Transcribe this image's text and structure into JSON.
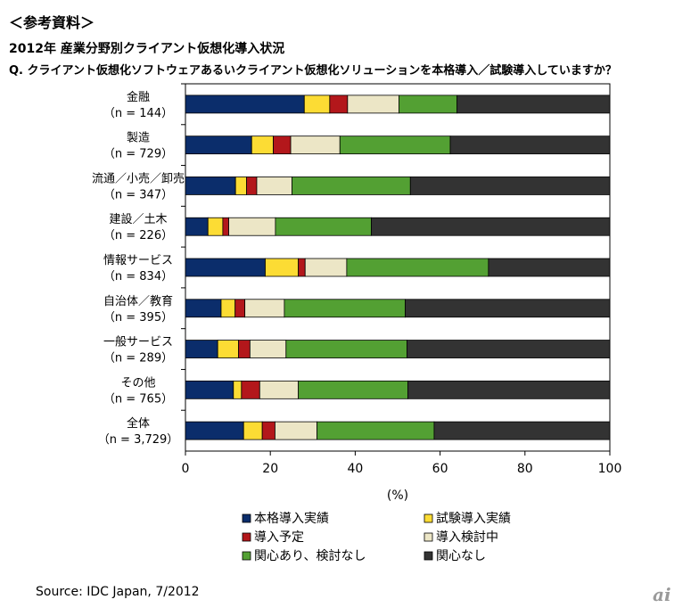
{
  "header": {
    "ref": "＜参考資料＞",
    "title": "2012年 産業分野別クライアント仮想化導入状況",
    "question": "Q. クライアント仮想化ソフトウェアあるいクライアント仮想化ソリューションを本格導入／試験導入していますか？"
  },
  "chart_data": {
    "type": "bar",
    "orientation": "horizontal",
    "stacked": true,
    "categories": [
      {
        "name": "金融",
        "n": "（n = 144）"
      },
      {
        "name": "製造",
        "n": "（n = 729）"
      },
      {
        "name": "流通／小売／卸売",
        "n": "（n = 347）"
      },
      {
        "name": "建設／土木",
        "n": "（n = 226）"
      },
      {
        "name": "情報サービス",
        "n": "（n = 834）"
      },
      {
        "name": "自治体／教育",
        "n": "（n = 395）"
      },
      {
        "name": "一般サービス",
        "n": "（n = 289）"
      },
      {
        "name": "その他",
        "n": "（n = 765）"
      },
      {
        "name": "全体",
        "n": "（n = 3,729）"
      }
    ],
    "series": [
      {
        "name": "本格導入実績",
        "color": "#0b2d6b",
        "values": [
          28,
          15.6,
          11.8,
          5.3,
          18.8,
          8.4,
          7.6,
          11.3,
          13.7
        ]
      },
      {
        "name": "試験導入実績",
        "color": "#fcdc34",
        "values": [
          6,
          5.1,
          2.6,
          3.5,
          7.8,
          3.3,
          4.9,
          1.9,
          4.4
        ]
      },
      {
        "name": "導入予定",
        "color": "#b3171b",
        "values": [
          4.2,
          4.1,
          2.4,
          1.4,
          1.6,
          2.3,
          2.7,
          4.3,
          3
        ]
      },
      {
        "name": "導入検討中",
        "color": "#ece6c6",
        "values": [
          12.1,
          11.6,
          8.3,
          11,
          9.8,
          9.3,
          8.5,
          9.1,
          9.9
        ]
      },
      {
        "name": "関心あり、検討なし",
        "color": "#53a033",
        "values": [
          13.7,
          26,
          27.9,
          22.6,
          33.4,
          28.5,
          28.5,
          25.8,
          27.6
        ]
      },
      {
        "name": "関心なし",
        "color": "#333333",
        "values": [
          36,
          37.6,
          47,
          56.2,
          28.6,
          48.2,
          47.8,
          47.6,
          41.4
        ]
      }
    ],
    "xlim": [
      0,
      100
    ],
    "xticks": [
      "0",
      "20",
      "40",
      "60",
      "80",
      "100"
    ],
    "xlabel": "(%)"
  },
  "source": "Source: IDC Japan, 7/2012",
  "logo": "ai"
}
